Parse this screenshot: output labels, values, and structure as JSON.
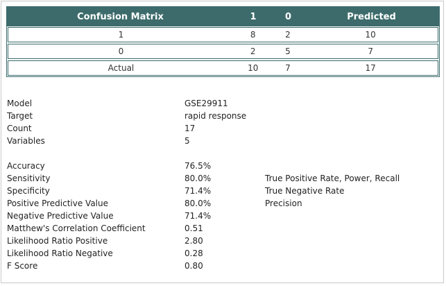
{
  "matrix": {
    "header": [
      "Confusion Matrix",
      "1",
      "0",
      "Predicted"
    ],
    "rows": [
      [
        "1",
        "8",
        "2",
        "10"
      ],
      [
        "0",
        "2",
        "5",
        "7"
      ],
      [
        "Actual",
        "10",
        "7",
        "17"
      ]
    ]
  },
  "info": [
    {
      "label": "Model",
      "value": "GSE29911"
    },
    {
      "label": "Target",
      "value": "rapid response"
    },
    {
      "label": "Count",
      "value": "17"
    },
    {
      "label": "Variables",
      "value": "5"
    }
  ],
  "metrics": [
    {
      "label": "Accuracy",
      "value": "76.5%",
      "desc": ""
    },
    {
      "label": "Sensitivity",
      "value": "80.0%",
      "desc": "True Positive Rate, Power, Recall"
    },
    {
      "label": "Specificity",
      "value": "71.4%",
      "desc": "True Negative Rate"
    },
    {
      "label": "Positive Predictive Value",
      "value": "80.0%",
      "desc": "Precision"
    },
    {
      "label": "Negative Predictive Value",
      "value": "71.4%",
      "desc": ""
    },
    {
      "label": "Matthew's Correlation Coefficient",
      "value": "0.51",
      "desc": ""
    },
    {
      "label": "Likelihood Ratio Positive",
      "value": "2.80",
      "desc": ""
    },
    {
      "label": "Likelihood Ratio Negative",
      "value": "0.28",
      "desc": ""
    },
    {
      "label": "F Score",
      "value": "0.80",
      "desc": ""
    }
  ]
}
